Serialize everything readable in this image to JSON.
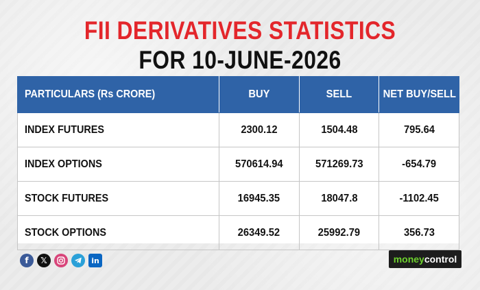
{
  "title": {
    "line1": "FII DERIVATIVES STATISTICS",
    "line2": "FOR 10-JUNE-2026"
  },
  "chart_data": {
    "type": "table",
    "title": "FII DERIVATIVES STATISTICS FOR 10-JUNE-2026",
    "columns": [
      "PARTICULARS (Rs CRORE)",
      "BUY",
      "SELL",
      "NET BUY/SELL"
    ],
    "rows": [
      {
        "particulars": "INDEX FUTURES",
        "buy": "2300.12",
        "sell": "1504.48",
        "net": "795.64"
      },
      {
        "particulars": "INDEX OPTIONS",
        "buy": "570614.94",
        "sell": "571269.73",
        "net": "-654.79"
      },
      {
        "particulars": "STOCK FUTURES",
        "buy": "16945.35",
        "sell": "18047.8",
        "net": "-1102.45"
      },
      {
        "particulars": "STOCK OPTIONS",
        "buy": "26349.52",
        "sell": "25992.79",
        "net": "356.73"
      }
    ]
  },
  "footer": {
    "social_icons": [
      "facebook-icon",
      "x-icon",
      "instagram-icon",
      "telegram-icon",
      "linkedin-icon"
    ],
    "brand_money": "money",
    "brand_control": "control"
  },
  "colors": {
    "title_red": "#e3262b",
    "header_blue": "#2f63a7",
    "brand_green": "#6ed12e"
  }
}
